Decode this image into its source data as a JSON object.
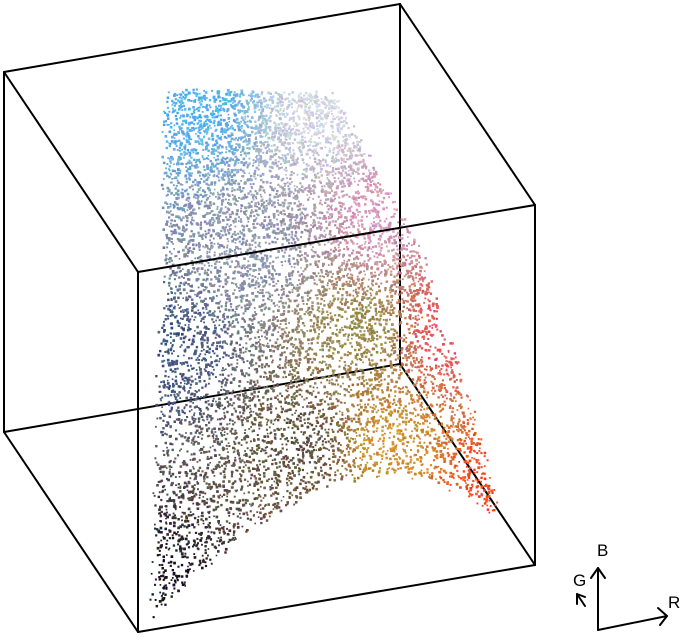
{
  "scene": {
    "type": "3d-color-space-scatter",
    "cube_edges_visible": true,
    "point_cloud": {
      "color_encoding": "rgb",
      "dominant_colors": [
        "#4fb0f0",
        "#2c3a6a",
        "#1a1520",
        "#8a7a2e",
        "#f04a5a",
        "#ff4a10",
        "#e8a0c0",
        "#c8c0c8"
      ]
    }
  },
  "axes_gizmo": {
    "labels": {
      "red": "R",
      "green": "G",
      "blue": "B"
    }
  }
}
